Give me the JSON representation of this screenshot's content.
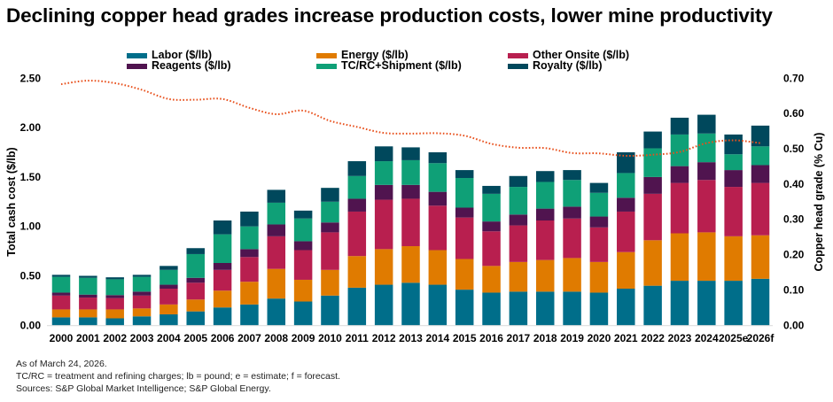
{
  "chart_data": {
    "type": "bar",
    "stacked": true,
    "title": "Declining copper head grades increase production costs, lower mine productivity",
    "categories": [
      "2000",
      "2001",
      "2002",
      "2003",
      "2004",
      "2005",
      "2006",
      "2007",
      "2008",
      "2009",
      "2010",
      "2011",
      "2012",
      "2013",
      "2014",
      "2015",
      "2016",
      "2017",
      "2018",
      "2019",
      "2020",
      "2021",
      "2022",
      "2023",
      "2024",
      "2025e",
      "2026f"
    ],
    "ylabel": "Total cash cost ($/lb)",
    "ylim": [
      0,
      2.5
    ],
    "yticks": [
      "0.00",
      "0.50",
      "1.00",
      "1.50",
      "2.00",
      "2.50"
    ],
    "y2label": "Copper head grade (% Cu)",
    "y2lim": [
      0,
      0.7
    ],
    "y2ticks": [
      "0.00",
      "0.10",
      "0.20",
      "0.30",
      "0.40",
      "0.50",
      "0.60",
      "0.70"
    ],
    "grid": false,
    "legend_position": "top",
    "series": [
      {
        "name": "Labor ($/lb)",
        "color": "#006e8a",
        "values": [
          0.08,
          0.08,
          0.07,
          0.09,
          0.11,
          0.14,
          0.18,
          0.21,
          0.27,
          0.24,
          0.3,
          0.38,
          0.41,
          0.43,
          0.41,
          0.36,
          0.33,
          0.34,
          0.34,
          0.34,
          0.33,
          0.37,
          0.4,
          0.45,
          0.45,
          0.45,
          0.47
        ]
      },
      {
        "name": "Energy ($/lb)",
        "color": "#e07b00",
        "values": [
          0.08,
          0.08,
          0.09,
          0.08,
          0.1,
          0.12,
          0.17,
          0.23,
          0.3,
          0.22,
          0.26,
          0.32,
          0.36,
          0.37,
          0.35,
          0.31,
          0.27,
          0.3,
          0.32,
          0.34,
          0.31,
          0.37,
          0.46,
          0.48,
          0.49,
          0.45,
          0.44
        ]
      },
      {
        "name": "Other Onsite ($/lb)",
        "color": "#b81f4f",
        "values": [
          0.14,
          0.12,
          0.115,
          0.13,
          0.16,
          0.17,
          0.21,
          0.25,
          0.33,
          0.3,
          0.38,
          0.45,
          0.5,
          0.48,
          0.45,
          0.42,
          0.35,
          0.37,
          0.4,
          0.4,
          0.35,
          0.41,
          0.47,
          0.51,
          0.53,
          0.5,
          0.53
        ]
      },
      {
        "name": "Reagents ($/lb)",
        "color": "#50144f",
        "values": [
          0.03,
          0.03,
          0.03,
          0.04,
          0.04,
          0.05,
          0.07,
          0.08,
          0.12,
          0.09,
          0.1,
          0.13,
          0.15,
          0.14,
          0.14,
          0.1,
          0.1,
          0.11,
          0.12,
          0.12,
          0.11,
          0.14,
          0.17,
          0.17,
          0.18,
          0.17,
          0.18
        ]
      },
      {
        "name": "TC/RC+Shipment ($/lb)",
        "color": "#0fa077",
        "values": [
          0.16,
          0.17,
          0.16,
          0.15,
          0.15,
          0.24,
          0.29,
          0.23,
          0.22,
          0.23,
          0.21,
          0.23,
          0.24,
          0.25,
          0.29,
          0.3,
          0.28,
          0.28,
          0.27,
          0.27,
          0.24,
          0.25,
          0.29,
          0.32,
          0.29,
          0.16,
          0.19
        ]
      },
      {
        "name": "Royalty ($/lb)",
        "color": "#00485c",
        "values": [
          0.02,
          0.02,
          0.02,
          0.02,
          0.04,
          0.06,
          0.14,
          0.15,
          0.13,
          0.08,
          0.14,
          0.15,
          0.15,
          0.13,
          0.11,
          0.08,
          0.08,
          0.11,
          0.11,
          0.1,
          0.1,
          0.21,
          0.17,
          0.17,
          0.19,
          0.2,
          0.21
        ]
      }
    ],
    "line": {
      "axis": "right",
      "style": "dotted",
      "color": "#e8501c",
      "values": [
        0.683,
        0.693,
        0.686,
        0.667,
        0.641,
        0.639,
        0.641,
        0.616,
        0.598,
        0.608,
        0.579,
        0.562,
        0.545,
        0.543,
        0.544,
        0.537,
        0.514,
        0.503,
        0.502,
        0.488,
        0.487,
        0.48,
        0.483,
        0.491,
        0.516,
        0.524,
        0.516
      ]
    }
  },
  "notes": [
    "As of March 24, 2026.",
    "TC/RC = treatment and refining charges; lb = pound; e = estimate; f = forecast.",
    "Sources: S&P Global Market Intelligence; S&P Global Energy."
  ]
}
